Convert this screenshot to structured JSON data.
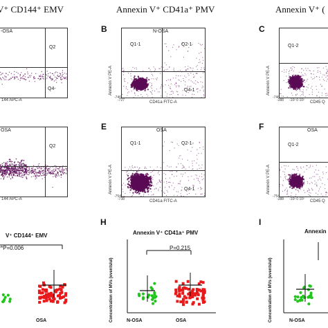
{
  "columns": {
    "emv": "CD144⁺ EMV",
    "emv_prefix": "V⁺ ",
    "pmv_prefix": "Annexin V⁺ ",
    "pmv": "CD41a⁺ PMV",
    "third": "Annexin V⁺ ("
  },
  "panels": {
    "A_top": {
      "title": "-OSA",
      "q2": "Q2",
      "q4": "Q4-",
      "xaxis": "144 APC-A"
    },
    "B": {
      "letter": "B",
      "title": "N-OSA",
      "q1": "Q1-1",
      "q2": "Q2-1",
      "q4": "Q4-1",
      "yaxis": "Annexin V PE-A",
      "xaxis": "CD41a FITC-A",
      "xmin": "-727",
      "ymin": "-746"
    },
    "C": {
      "letter": "C",
      "q1": "Q1-2",
      "yaxis": "Annexin V PE-A",
      "xaxis": "CD45 Q",
      "xmin": "-388",
      "xtick": "-10² 0 10²",
      "ymin": "-746"
    },
    "A_mid": {
      "title": "OSA",
      "q2": "Q2",
      "q4": "-",
      "xaxis": "144 APC-A"
    },
    "E": {
      "letter": "E",
      "title": "OSA",
      "q1": "Q1-1",
      "q2": "Q2-1",
      "q4": "Q4-1",
      "yaxis": "Annexin V PE-A",
      "xaxis": "CD41a FITC-A",
      "xmin": "-738",
      "ymin": "-754"
    },
    "F": {
      "letter": "F",
      "title": "OSA",
      "q1": "Q1-2",
      "yaxis": "Annexin V PE-A",
      "xaxis": "CD45 Q",
      "xmin": "-388",
      "xtick": "-10² 0 10²",
      "ymin": "-754"
    }
  },
  "dotplots": {
    "G": {
      "title": "V⁺ CD144⁺ EMV",
      "pval": "**P=0.006",
      "cat2": "OSA"
    },
    "H": {
      "letter": "H",
      "title": "Annexin V⁺ CD41a⁺ PMV",
      "pval": "P=0.215",
      "ylabel": "Concentration of MVs (events/ul)",
      "cat1": "N-OSA",
      "cat2": "OSA"
    },
    "I": {
      "letter": "I",
      "title": "Annexin",
      "ylabel": "Concentration of MVs (events/ul)",
      "cat1": "N-OSA"
    }
  },
  "colors": {
    "purple": "#5a0a55",
    "green": "#22c51e",
    "red": "#e8191b"
  }
}
